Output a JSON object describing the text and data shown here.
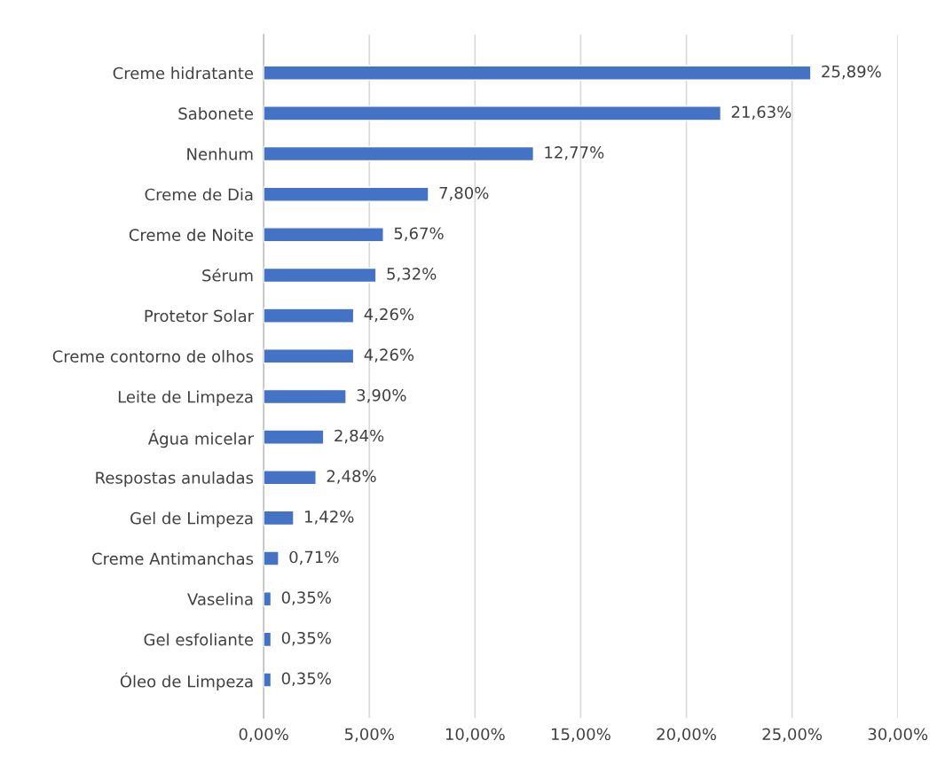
{
  "chart_data": {
    "type": "bar",
    "orientation": "horizontal",
    "categories": [
      "Creme hidratante",
      "Sabonete",
      "Nenhum",
      "Creme de Dia",
      "Creme de Noite",
      "Sérum",
      "Protetor Solar",
      "Creme contorno de olhos",
      "Leite de Limpeza",
      "Água micelar",
      "Respostas anuladas",
      "Gel de Limpeza",
      "Creme Antimanchas",
      "Vaselina",
      "Gel esfoliante",
      "Óleo de Limpeza"
    ],
    "values": [
      25.89,
      21.63,
      12.77,
      7.8,
      5.67,
      5.32,
      4.26,
      4.26,
      3.9,
      2.84,
      2.48,
      1.42,
      0.71,
      0.35,
      0.35,
      0.35
    ],
    "value_labels": [
      "25,89%",
      "21,63%",
      "12,77%",
      "7,80%",
      "5,67%",
      "5,32%",
      "4,26%",
      "4,26%",
      "3,90%",
      "2,84%",
      "2,48%",
      "1,42%",
      "0,71%",
      "0,35%",
      "0,35%",
      "0,35%"
    ],
    "color": "#4472c4",
    "xlim": [
      0,
      30
    ],
    "xticks": [
      {
        "value": 0,
        "label": "0,00%"
      },
      {
        "value": 5,
        "label": "5,00%"
      },
      {
        "value": 10,
        "label": "10,00%"
      },
      {
        "value": 15,
        "label": "15,00%"
      },
      {
        "value": 20,
        "label": "20,00%"
      },
      {
        "value": 25,
        "label": "25,00%"
      },
      {
        "value": 30,
        "label": "30,00%"
      }
    ],
    "grid": "x"
  }
}
